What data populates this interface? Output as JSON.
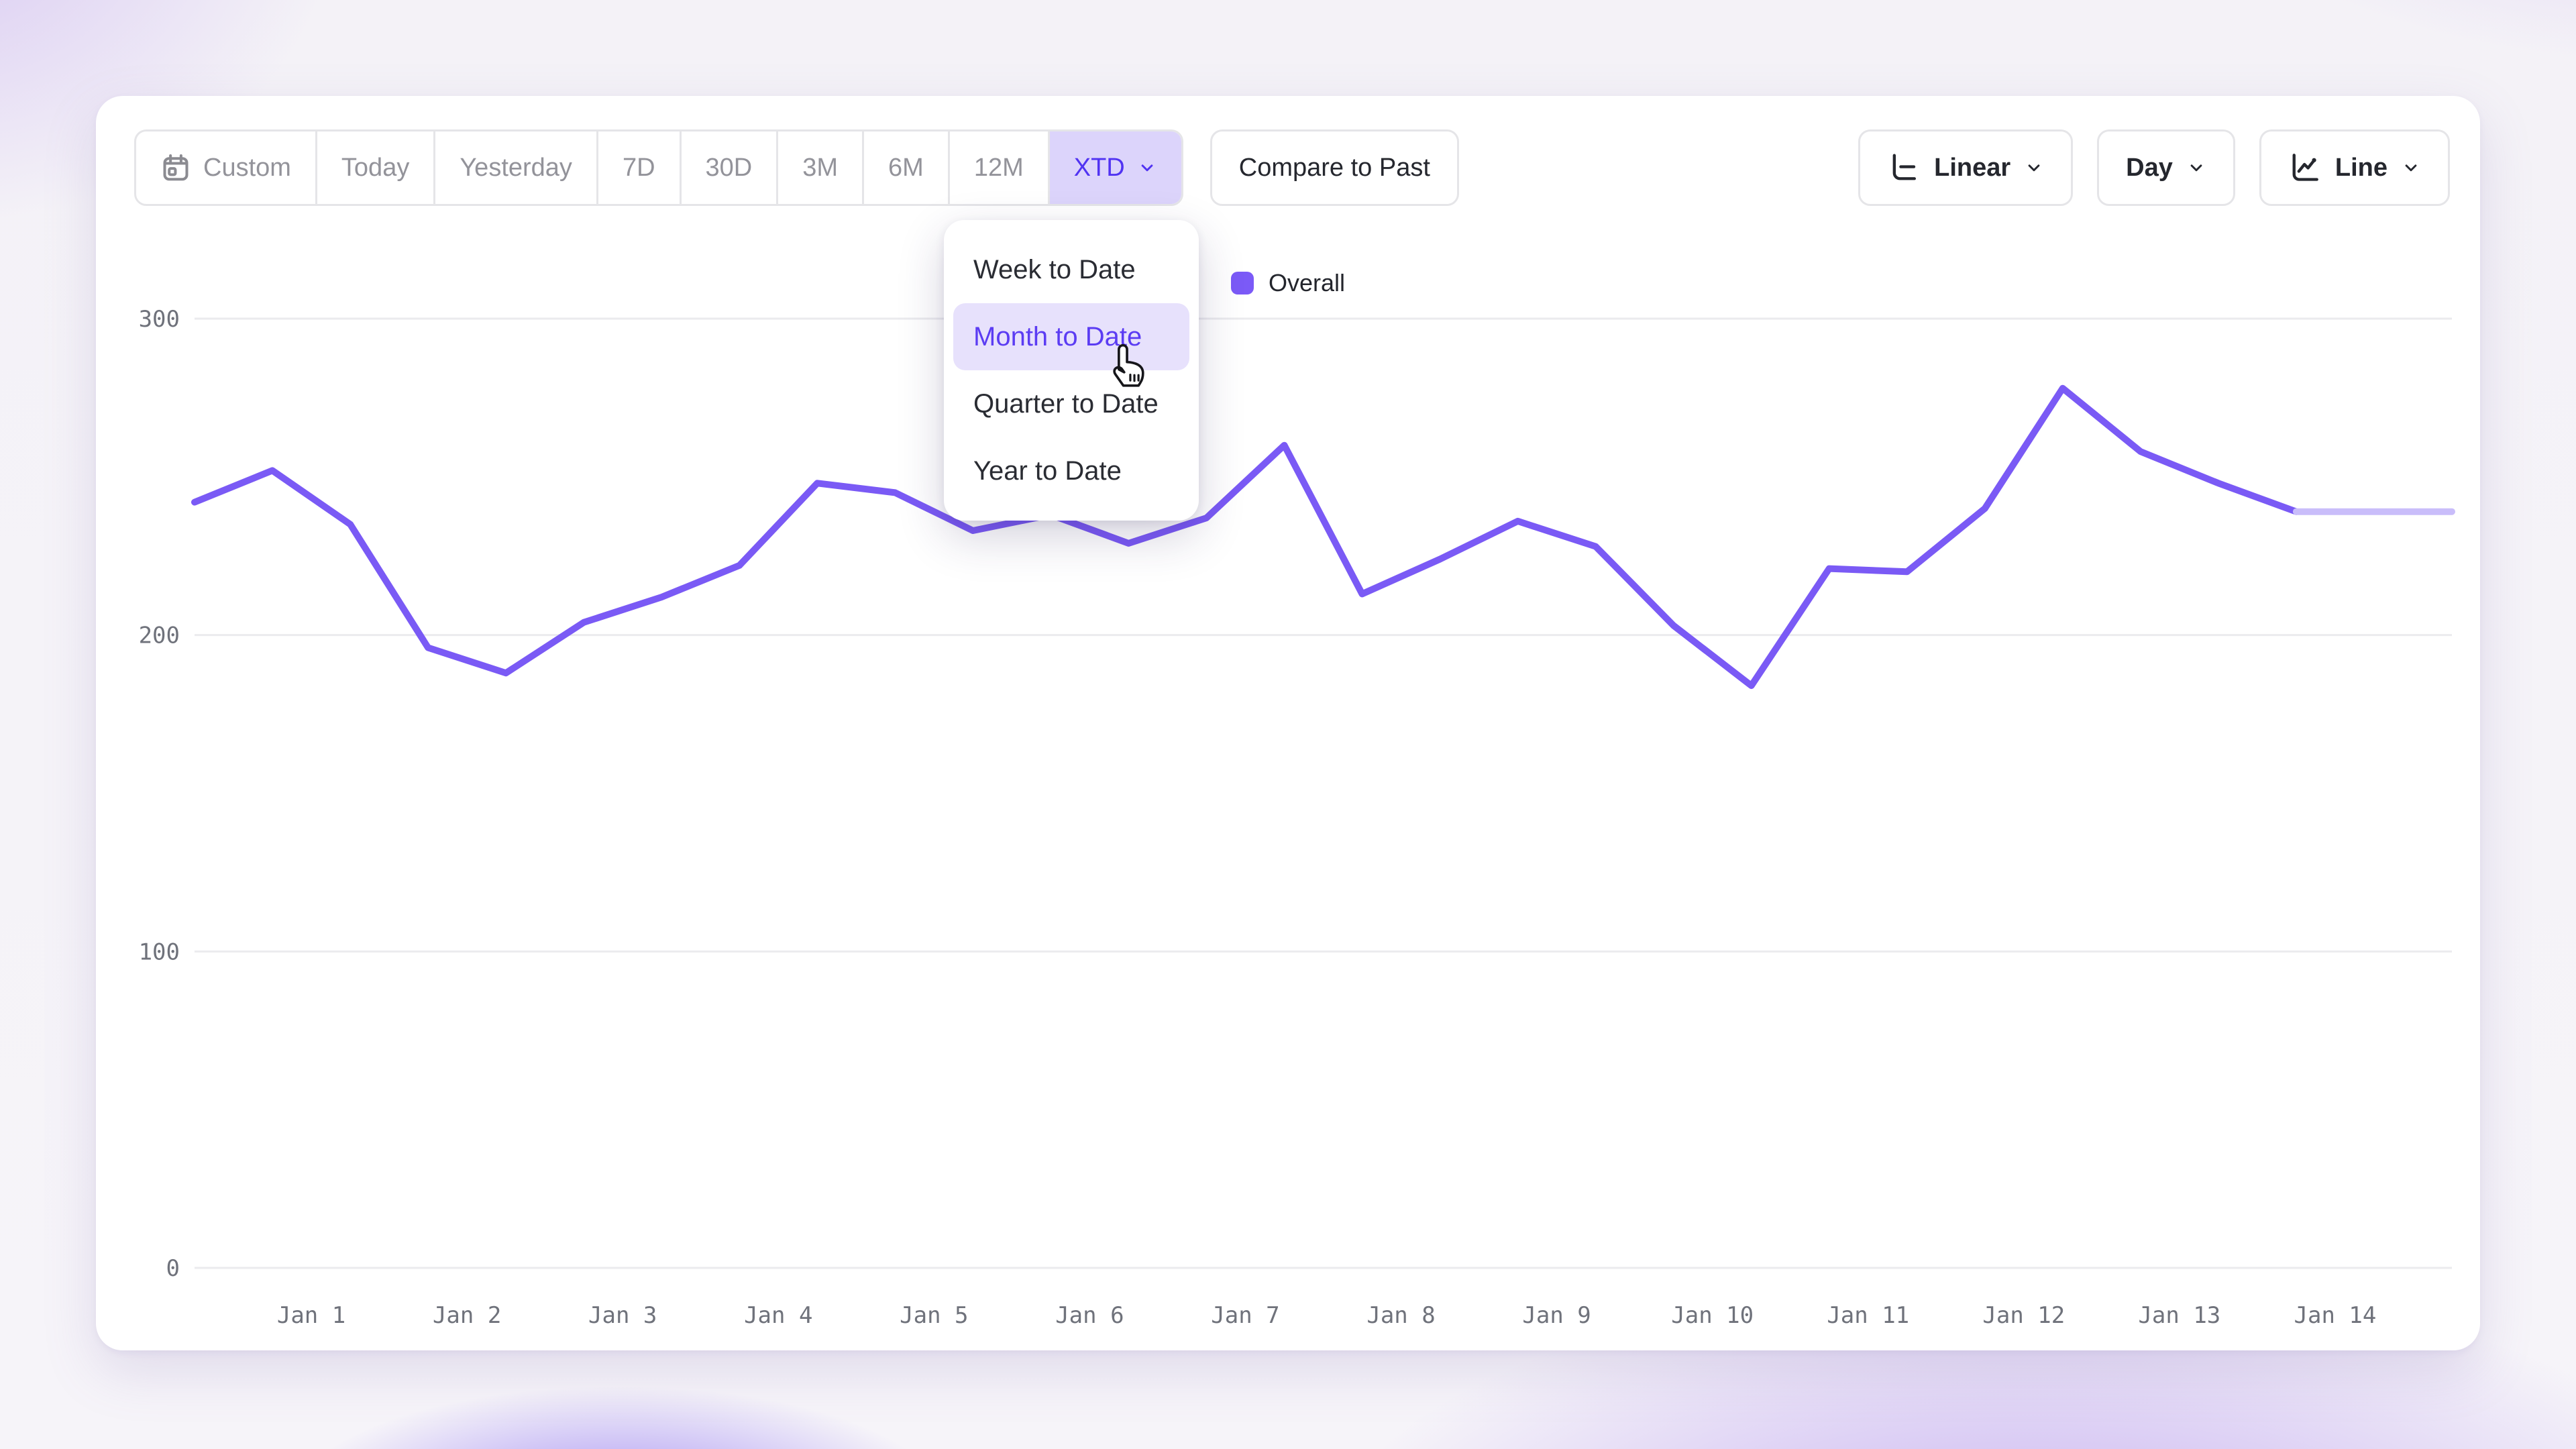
{
  "toolbar": {
    "ranges": [
      {
        "label": "Custom",
        "icon": "calendar-icon",
        "active": false
      },
      {
        "label": "Today",
        "active": false
      },
      {
        "label": "Yesterday",
        "active": false
      },
      {
        "label": "7D",
        "active": false
      },
      {
        "label": "30D",
        "active": false
      },
      {
        "label": "3M",
        "active": false
      },
      {
        "label": "6M",
        "active": false
      },
      {
        "label": "12M",
        "active": false
      },
      {
        "label": "XTD",
        "active": true,
        "chevron": true
      }
    ],
    "compare_label": "Compare to Past",
    "scale_button": {
      "label": "Linear",
      "icon": "linear-scale-icon",
      "chevron": true
    },
    "granularity_button": {
      "label": "Day",
      "chevron": true
    },
    "chart_type_button": {
      "label": "Line",
      "icon": "line-chart-icon",
      "chevron": true
    }
  },
  "dropdown_menu": {
    "items": [
      {
        "label": "Week to Date",
        "active": false
      },
      {
        "label": "Month to Date",
        "active": true
      },
      {
        "label": "Quarter to Date",
        "active": false
      },
      {
        "label": "Year to Date",
        "active": false
      }
    ]
  },
  "legend": {
    "series_label": "Overall",
    "swatch_color": "#7b5af7"
  },
  "chart_data": {
    "type": "line",
    "title": "",
    "series": [
      {
        "name": "Overall",
        "values": [
          242,
          252,
          235,
          196,
          188,
          204,
          212,
          222,
          248,
          245,
          233,
          238,
          229,
          237,
          260,
          213,
          224,
          236,
          228,
          203,
          184,
          221,
          220,
          240,
          278,
          258,
          248,
          239,
          239,
          239
        ]
      }
    ],
    "points_per_day": 2,
    "solid_until_index": 27,
    "x_labels": [
      "Jan 1",
      "Jan 2",
      "Jan 3",
      "Jan 4",
      "Jan 5",
      "Jan 6",
      "Jan 7",
      "Jan 8",
      "Jan 9",
      "Jan 10",
      "Jan 11",
      "Jan 12",
      "Jan 13",
      "Jan 14"
    ],
    "y_ticks": [
      0,
      100,
      200,
      300
    ],
    "ylim": [
      0,
      300
    ],
    "grid": "horizontal",
    "legend_position": "top-center",
    "line_color": "#7a5af5",
    "tail_color": "#c9bdfa",
    "grid_color": "#ebebee"
  },
  "colors": {
    "accent": "#5133f2",
    "accent_soft": "#dcd4fb",
    "menu_active_bg": "#e7e1fc",
    "toolbar_text": "#93939a",
    "dark_text": "#25272e"
  }
}
